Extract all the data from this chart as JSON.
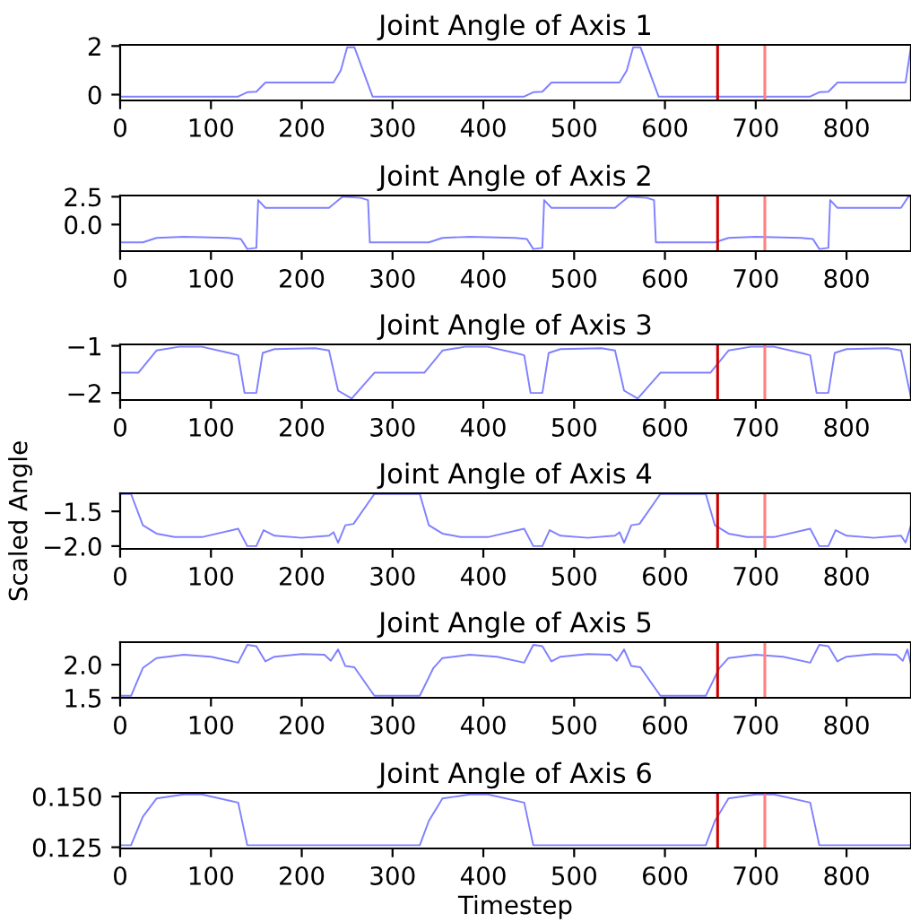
{
  "chart_data": [
    {
      "type": "line",
      "title": "Joint Angle of Axis 1",
      "xlim": [
        0,
        871
      ],
      "xticks": [
        0,
        100,
        200,
        300,
        400,
        500,
        600,
        700,
        800
      ],
      "ylim": [
        -0.24,
        2.05
      ],
      "yticks": [
        0,
        2
      ],
      "series": [
        {
          "color": "#8080ff",
          "x": [
            0,
            130,
            140,
            150,
            160,
            235,
            243,
            250,
            258,
            278,
            445,
            455,
            465,
            475,
            550,
            558,
            565,
            573,
            593,
            760,
            770,
            780,
            790,
            865,
            871
          ],
          "values": [
            -0.08,
            -0.08,
            0.1,
            0.12,
            0.5,
            0.5,
            1.0,
            1.95,
            1.95,
            -0.08,
            -0.08,
            0.1,
            0.12,
            0.5,
            0.5,
            1.0,
            1.95,
            1.95,
            -0.08,
            -0.08,
            0.1,
            0.12,
            0.5,
            0.5,
            2.0
          ]
        }
      ],
      "ref_lines": [
        {
          "axis": "x",
          "value": 658,
          "color": "#cc0000"
        },
        {
          "axis": "x",
          "value": 710,
          "color": "#ff8080"
        }
      ]
    },
    {
      "type": "line",
      "title": "Joint Angle of Axis 2",
      "xlim": [
        0,
        871
      ],
      "xticks": [
        0,
        100,
        200,
        300,
        400,
        500,
        600,
        700,
        800
      ],
      "ylim": [
        -2.39,
        2.61
      ],
      "yticks": [
        {
          "value": 2.5,
          "label": "2.5"
        },
        {
          "value": 0,
          "label": "0.0"
        }
      ],
      "series": [
        {
          "color": "#8080ff",
          "x": [
            0,
            25,
            40,
            70,
            120,
            133,
            140,
            150,
            152,
            160,
            230,
            245,
            265,
            273,
            275,
            340,
            355,
            385,
            435,
            448,
            455,
            465,
            467,
            475,
            545,
            560,
            580,
            588,
            590,
            655,
            670,
            700,
            750,
            763,
            770,
            780,
            782,
            790,
            860,
            868,
            871
          ],
          "values": [
            -1.6,
            -1.6,
            -1.2,
            -1.1,
            -1.2,
            -1.3,
            -2.2,
            -2.1,
            2.2,
            1.5,
            1.5,
            2.5,
            2.4,
            2.2,
            -1.6,
            -1.6,
            -1.2,
            -1.1,
            -1.2,
            -1.3,
            -2.2,
            -2.1,
            2.2,
            1.5,
            1.5,
            2.5,
            2.4,
            2.2,
            -1.6,
            -1.6,
            -1.2,
            -1.1,
            -1.2,
            -1.3,
            -2.2,
            -2.1,
            2.2,
            1.5,
            1.5,
            2.5,
            2.5
          ]
        }
      ],
      "ref_lines": [
        {
          "axis": "x",
          "value": 658,
          "color": "#cc0000"
        },
        {
          "axis": "x",
          "value": 710,
          "color": "#ff8080"
        }
      ]
    },
    {
      "type": "line",
      "title": "Joint Angle of Axis 3",
      "xlim": [
        0,
        871
      ],
      "xticks": [
        0,
        100,
        200,
        300,
        400,
        500,
        600,
        700,
        800
      ],
      "ylim": [
        -2.15,
        -0.97
      ],
      "yticks": [
        {
          "value": -1,
          "label": "−1"
        },
        {
          "value": -2,
          "label": "−2"
        }
      ],
      "series": [
        {
          "color": "#8080ff",
          "x": [
            0,
            20,
            40,
            65,
            90,
            120,
            130,
            137,
            150,
            157,
            170,
            215,
            230,
            240,
            255,
            280,
            335,
            355,
            380,
            405,
            435,
            445,
            452,
            465,
            472,
            485,
            530,
            545,
            555,
            570,
            595,
            650,
            670,
            695,
            720,
            750,
            760,
            767,
            780,
            787,
            800,
            845,
            860,
            871
          ],
          "values": [
            -1.57,
            -1.57,
            -1.1,
            -1.02,
            -1.02,
            -1.15,
            -1.2,
            -2.0,
            -2.0,
            -1.15,
            -1.07,
            -1.05,
            -1.1,
            -1.95,
            -2.12,
            -1.57,
            -1.57,
            -1.1,
            -1.02,
            -1.02,
            -1.15,
            -1.2,
            -2.0,
            -2.0,
            -1.15,
            -1.07,
            -1.05,
            -1.1,
            -1.95,
            -2.12,
            -1.57,
            -1.57,
            -1.1,
            -1.02,
            -1.02,
            -1.15,
            -1.2,
            -2.0,
            -2.0,
            -1.15,
            -1.07,
            -1.05,
            -1.1,
            -2.1
          ]
        }
      ],
      "ref_lines": [
        {
          "axis": "x",
          "value": 658,
          "color": "#cc0000"
        },
        {
          "axis": "x",
          "value": 710,
          "color": "#ff8080"
        }
      ]
    },
    {
      "type": "line",
      "title": "Joint Angle of Axis 4",
      "ylabel": "Scaled Angle",
      "xlim": [
        0,
        871
      ],
      "xticks": [
        0,
        100,
        200,
        300,
        400,
        500,
        600,
        700,
        800
      ],
      "ylim": [
        -2.04,
        -1.24
      ],
      "yticks": [
        {
          "value": -1.5,
          "label": "−1.5"
        },
        {
          "value": -2.0,
          "label": "−2.0"
        }
      ],
      "series": [
        {
          "color": "#8080ff",
          "x": [
            0,
            12,
            25,
            40,
            60,
            90,
            130,
            140,
            150,
            158,
            170,
            200,
            230,
            235,
            240,
            248,
            257,
            280,
            330,
            340,
            355,
            375,
            405,
            445,
            455,
            465,
            473,
            485,
            515,
            545,
            550,
            555,
            563,
            572,
            595,
            645,
            655,
            670,
            690,
            720,
            760,
            770,
            780,
            788,
            800,
            830,
            860,
            865,
            871
          ],
          "values": [
            -1.25,
            -1.25,
            -1.7,
            -1.82,
            -1.87,
            -1.87,
            -1.75,
            -2.0,
            -2.0,
            -1.77,
            -1.85,
            -1.88,
            -1.85,
            -1.8,
            -1.95,
            -1.7,
            -1.68,
            -1.25,
            -1.25,
            -1.7,
            -1.82,
            -1.87,
            -1.87,
            -1.75,
            -2.0,
            -2.0,
            -1.77,
            -1.85,
            -1.88,
            -1.85,
            -1.8,
            -1.95,
            -1.7,
            -1.68,
            -1.25,
            -1.25,
            -1.7,
            -1.82,
            -1.87,
            -1.87,
            -1.75,
            -2.0,
            -2.0,
            -1.77,
            -1.85,
            -1.88,
            -1.85,
            -1.95,
            -1.7
          ]
        }
      ],
      "ref_lines": [
        {
          "axis": "x",
          "value": 658,
          "color": "#cc0000"
        },
        {
          "axis": "x",
          "value": 710,
          "color": "#ff8080"
        }
      ]
    },
    {
      "type": "line",
      "title": "Joint Angle of Axis 5",
      "xlim": [
        0,
        871
      ],
      "xticks": [
        0,
        100,
        200,
        300,
        400,
        500,
        600,
        700,
        800
      ],
      "ylim": [
        1.5,
        2.34
      ],
      "yticks": [
        {
          "value": 2.0,
          "label": "2.0"
        },
        {
          "value": 1.5,
          "label": "1.5"
        }
      ],
      "series": [
        {
          "color": "#8080ff",
          "x": [
            0,
            12,
            25,
            40,
            70,
            100,
            130,
            140,
            150,
            160,
            170,
            200,
            225,
            232,
            240,
            248,
            258,
            280,
            330,
            345,
            355,
            385,
            415,
            445,
            455,
            465,
            475,
            485,
            515,
            540,
            547,
            555,
            563,
            573,
            595,
            645,
            660,
            670,
            700,
            730,
            760,
            770,
            780,
            790,
            800,
            830,
            855,
            862,
            867,
            871
          ],
          "values": [
            1.53,
            1.53,
            1.95,
            2.1,
            2.15,
            2.12,
            2.03,
            2.3,
            2.28,
            2.05,
            2.12,
            2.16,
            2.15,
            2.06,
            2.23,
            1.98,
            1.96,
            1.53,
            1.53,
            1.95,
            2.1,
            2.15,
            2.12,
            2.03,
            2.3,
            2.28,
            2.05,
            2.12,
            2.16,
            2.15,
            2.06,
            2.23,
            1.98,
            1.96,
            1.53,
            1.53,
            1.95,
            2.1,
            2.15,
            2.12,
            2.03,
            2.3,
            2.28,
            2.05,
            2.12,
            2.16,
            2.15,
            2.06,
            2.23,
            2.0
          ]
        }
      ],
      "ref_lines": [
        {
          "axis": "x",
          "value": 658,
          "color": "#cc0000"
        },
        {
          "axis": "x",
          "value": 710,
          "color": "#ff8080"
        }
      ]
    },
    {
      "type": "line",
      "title": "Joint Angle of Axis 6",
      "xlabel": "Timestep",
      "xlim": [
        0,
        871
      ],
      "xticks": [
        0,
        100,
        200,
        300,
        400,
        500,
        600,
        700,
        800
      ],
      "ylim": [
        0.1244,
        0.1518
      ],
      "yticks": [
        {
          "value": 0.15,
          "label": "0.150"
        },
        {
          "value": 0.125,
          "label": "0.125"
        }
      ],
      "series": [
        {
          "color": "#8080ff",
          "x": [
            0,
            12,
            25,
            40,
            70,
            90,
            130,
            140,
            330,
            340,
            355,
            385,
            405,
            445,
            455,
            645,
            655,
            670,
            700,
            720,
            760,
            770,
            871
          ],
          "values": [
            0.126,
            0.126,
            0.14,
            0.149,
            0.151,
            0.151,
            0.147,
            0.126,
            0.126,
            0.138,
            0.149,
            0.151,
            0.151,
            0.147,
            0.126,
            0.126,
            0.138,
            0.149,
            0.151,
            0.151,
            0.147,
            0.126,
            0.126
          ]
        }
      ],
      "ref_lines": [
        {
          "axis": "x",
          "value": 658,
          "color": "#cc0000"
        },
        {
          "axis": "x",
          "value": 710,
          "color": "#ff8080"
        }
      ]
    }
  ]
}
